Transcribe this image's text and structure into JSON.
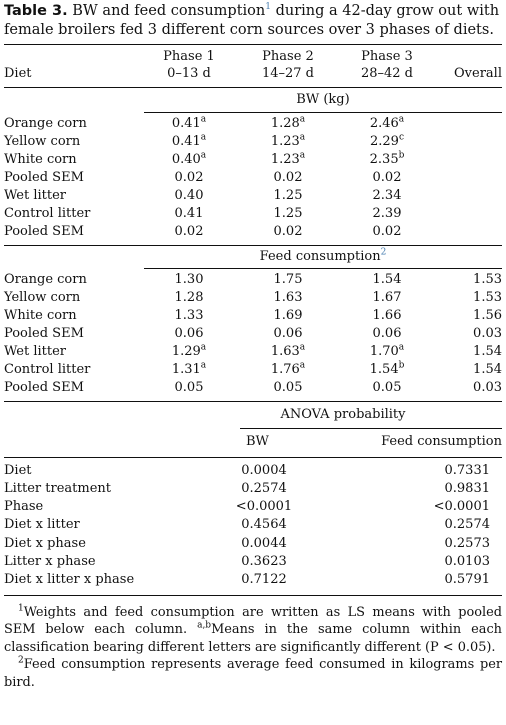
{
  "title": {
    "label": "Table 3.",
    "text_a": "BW and feed consumption",
    "fn_ref": "1",
    "text_b": "during a 42-day grow out with female broilers fed 3 different corn sources over 3 phases of diets."
  },
  "header": {
    "diet": "Diet",
    "phase1": "Phase 1",
    "phase1_days": "0–13 d",
    "phase2": "Phase 2",
    "phase2_days": "14–27 d",
    "phase3": "Phase 3",
    "phase3_days": "28–42 d",
    "overall": "Overall"
  },
  "bw": {
    "heading": "BW (kg)",
    "rows": [
      {
        "diet": "Orange corn",
        "p1": "0.41",
        "p1s": "a",
        "p2": "1.28",
        "p2s": "a",
        "p3": "2.46",
        "p3s": "a",
        "overall": ""
      },
      {
        "diet": "Yellow corn",
        "p1": "0.41",
        "p1s": "a",
        "p2": "1.23",
        "p2s": "a",
        "p3": "2.29",
        "p3s": "c",
        "overall": ""
      },
      {
        "diet": "White corn",
        "p1": "0.40",
        "p1s": "a",
        "p2": "1.23",
        "p2s": "a",
        "p3": "2.35",
        "p3s": "b",
        "overall": ""
      },
      {
        "diet": "Pooled SEM",
        "p1": "0.02",
        "p1s": "",
        "p2": "0.02",
        "p2s": "",
        "p3": "0.02",
        "p3s": "",
        "overall": ""
      },
      {
        "diet": "Wet litter",
        "p1": "0.40",
        "p1s": "",
        "p2": "1.25",
        "p2s": "",
        "p3": "2.34",
        "p3s": "",
        "overall": ""
      },
      {
        "diet": "Control litter",
        "p1": "0.41",
        "p1s": "",
        "p2": "1.25",
        "p2s": "",
        "p3": "2.39",
        "p3s": "",
        "overall": ""
      },
      {
        "diet": "Pooled SEM",
        "p1": "0.02",
        "p1s": "",
        "p2": "0.02",
        "p2s": "",
        "p3": "0.02",
        "p3s": "",
        "overall": ""
      }
    ]
  },
  "feed": {
    "heading": "Feed consumption",
    "fn_ref": "2",
    "rows": [
      {
        "diet": "Orange corn",
        "p1": "1.30",
        "p1s": "",
        "p2": "1.75",
        "p2s": "",
        "p3": "1.54",
        "p3s": "",
        "overall": "1.53"
      },
      {
        "diet": "Yellow corn",
        "p1": "1.28",
        "p1s": "",
        "p2": "1.63",
        "p2s": "",
        "p3": "1.67",
        "p3s": "",
        "overall": "1.53"
      },
      {
        "diet": "White corn",
        "p1": "1.33",
        "p1s": "",
        "p2": "1.69",
        "p2s": "",
        "p3": "1.66",
        "p3s": "",
        "overall": "1.56"
      },
      {
        "diet": "Pooled SEM",
        "p1": "0.06",
        "p1s": "",
        "p2": "0.06",
        "p2s": "",
        "p3": "0.06",
        "p3s": "",
        "overall": "0.03"
      },
      {
        "diet": "Wet litter",
        "p1": "1.29",
        "p1s": "a",
        "p2": "1.63",
        "p2s": "a",
        "p3": "1.70",
        "p3s": "a",
        "overall": "1.54"
      },
      {
        "diet": "Control litter",
        "p1": "1.31",
        "p1s": "a",
        "p2": "1.76",
        "p2s": "a",
        "p3": "1.54",
        "p3s": "b",
        "overall": "1.54"
      },
      {
        "diet": "Pooled SEM",
        "p1": "0.05",
        "p1s": "",
        "p2": "0.05",
        "p2s": "",
        "p3": "0.05",
        "p3s": "",
        "overall": "0.03"
      }
    ]
  },
  "anova": {
    "heading": "ANOVA probability",
    "col_bw": "BW",
    "col_feed": "Feed consumption",
    "rows": [
      {
        "label": "Diet",
        "bw": "0.0004",
        "feed": "0.7331"
      },
      {
        "label": "Litter treatment",
        "bw": "0.2574",
        "feed": "0.9831"
      },
      {
        "label": "Phase",
        "bw": "<0.0001",
        "feed": "<0.0001"
      },
      {
        "label": "Diet x litter",
        "bw": "0.4564",
        "feed": "0.2574"
      },
      {
        "label": "Diet x phase",
        "bw": "0.0044",
        "feed": "0.2573"
      },
      {
        "label": "Litter x phase",
        "bw": "0.3623",
        "feed": "0.0103"
      },
      {
        "label": "Diet x litter x phase",
        "bw": "0.7122",
        "feed": "0.5791"
      }
    ]
  },
  "footnotes": {
    "fn1_mark": "1",
    "fn1_a": "Weights and feed consumption are written as LS means with pooled SEM below each column.",
    "fn1_mark2": "a,b",
    "fn1_b": "Means in the same column within each classification bearing different letters are significantly different (P < 0.05).",
    "fn2_mark": "2",
    "fn2": "Feed consumption represents average feed consumed in kilograms per bird."
  },
  "colors": {
    "link": "#4a7fb0",
    "text": "#111111"
  }
}
